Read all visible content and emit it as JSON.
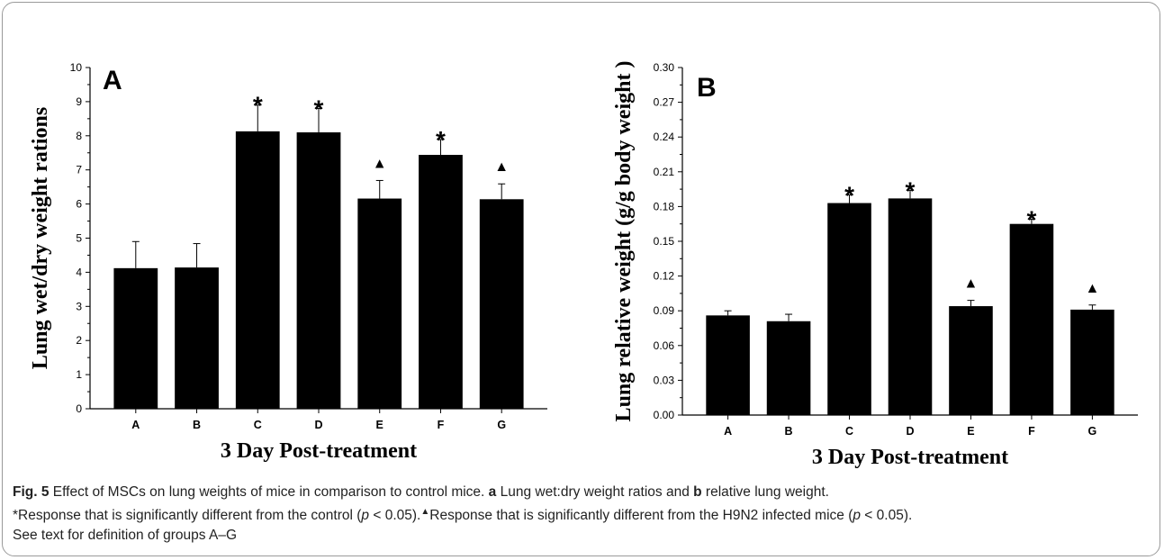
{
  "chart_data": [
    {
      "type": "bar",
      "panel_label": "A",
      "categories": [
        "A",
        "B",
        "C",
        "D",
        "E",
        "F",
        "G"
      ],
      "values": [
        4.12,
        4.14,
        8.13,
        8.1,
        6.16,
        7.44,
        6.14
      ],
      "errors": [
        0.78,
        0.7,
        0.77,
        0.7,
        0.53,
        0.45,
        0.45
      ],
      "markers": [
        "",
        "",
        "*",
        "*",
        "▲",
        "*",
        "▲"
      ],
      "ylim": [
        0,
        10
      ],
      "yticks": [
        "0",
        "1",
        "2",
        "3",
        "4",
        "5",
        "6",
        "7",
        "8",
        "9",
        "10"
      ],
      "xlabel": "3 Day Post-treatment",
      "ylabel": "Lung wet/dry weight rations",
      "color": "#000000"
    },
    {
      "type": "bar",
      "panel_label": "B",
      "categories": [
        "A",
        "B",
        "C",
        "D",
        "E",
        "F",
        "G"
      ],
      "values": [
        0.086,
        0.081,
        0.183,
        0.187,
        0.094,
        0.165,
        0.091
      ],
      "errors": [
        0.004,
        0.006,
        0.007,
        0.007,
        0.005,
        0.004,
        0.004
      ],
      "markers": [
        "",
        "",
        "*",
        "*",
        "▲",
        "*",
        "▲"
      ],
      "ylim": [
        0,
        0.3
      ],
      "yticks": [
        "0.00",
        "0.03",
        "0.06",
        "0.09",
        "0.12",
        "0.15",
        "0.18",
        "0.21",
        "0.24",
        "0.27",
        "0.30"
      ],
      "xlabel": "3 Day Post-treatment",
      "ylabel": "Lung relative weight (g/g body weight )",
      "color": "#000000"
    }
  ],
  "caption": {
    "fig_label": "Fig. 5",
    "line1": " Effect of MSCs on lung weights of mice in comparison to control mice. ",
    "a_label": "a",
    "a_text": " Lung wet:dry weight ratios and ",
    "b_label": "b",
    "b_text": " relative lung weight.",
    "sig1_a": "*Response that is significantly different from the control (",
    "p_symbol": "p",
    "sig1_b": " < 0.05).",
    "triangle": "▲",
    "sig2_a": "Response that is significantly different from the H9N2 infected mice (",
    "sig2_b": " < 0.05).",
    "line3": "See text for definition of groups A–G"
  }
}
